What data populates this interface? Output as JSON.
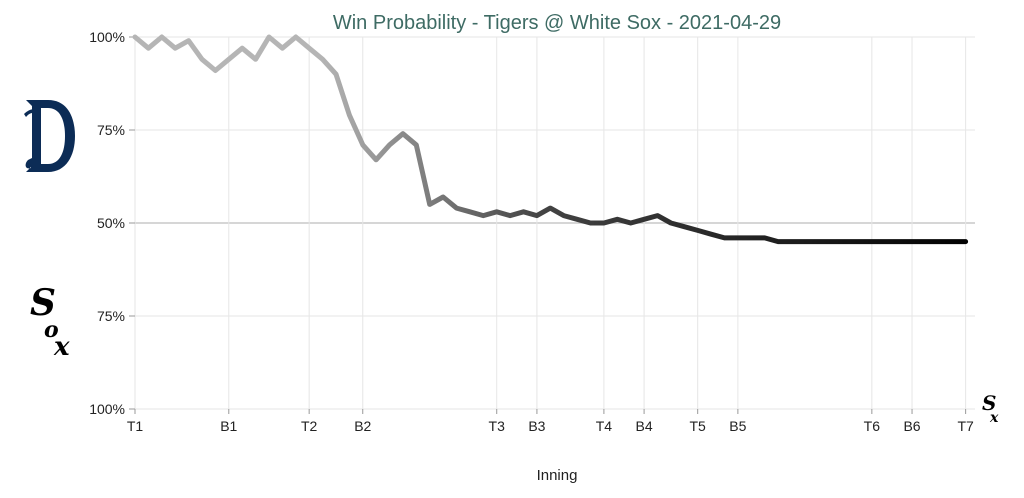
{
  "chart_data": {
    "type": "line",
    "title": "Win Probability - Tigers @ White Sox - 2021-04-29",
    "xlabel": "Inning",
    "ylabel": "",
    "teams": {
      "top": "Tigers",
      "bottom": "White Sox"
    },
    "y_ticks": [
      "100%",
      "75%",
      "50%",
      "75%",
      "100%"
    ],
    "ylim": [
      -50,
      50
    ],
    "x_ticks": [
      {
        "label": "T1",
        "x": 0
      },
      {
        "label": "B1",
        "x": 7
      },
      {
        "label": "T2",
        "x": 13
      },
      {
        "label": "B2",
        "x": 17
      },
      {
        "label": "T3",
        "x": 27
      },
      {
        "label": "B3",
        "x": 30
      },
      {
        "label": "T4",
        "x": 35
      },
      {
        "label": "B4",
        "x": 38
      },
      {
        "label": "T5",
        "x": 42
      },
      {
        "label": "B5",
        "x": 45
      },
      {
        "label": "T6",
        "x": 55
      },
      {
        "label": "B6",
        "x": 58
      },
      {
        "label": "T7",
        "x": 62
      }
    ],
    "xlim": [
      0,
      62.7
    ],
    "series": [
      {
        "x": [
          0,
          1,
          2,
          3,
          4,
          5,
          6,
          7,
          8,
          9,
          10,
          11,
          12,
          13,
          14,
          15,
          16,
          17,
          18,
          19,
          20,
          21,
          22,
          23,
          24,
          25,
          26,
          27,
          28,
          29,
          30,
          31,
          32,
          33,
          34,
          35,
          36,
          37,
          38,
          39,
          40,
          41,
          42,
          43,
          44,
          45,
          46,
          47,
          48,
          49,
          50,
          51,
          52,
          53,
          54,
          55,
          56,
          57,
          58,
          59,
          60,
          61,
          62
        ],
        "values": [
          50,
          47,
          50,
          47,
          49,
          44,
          41,
          44,
          47,
          44,
          50,
          47,
          50,
          47,
          44,
          40,
          29,
          21,
          17,
          21,
          24,
          21,
          5,
          7,
          4,
          3,
          2,
          3,
          2,
          3,
          2,
          4,
          2,
          1,
          0,
          0,
          1,
          0,
          1,
          2,
          0,
          -1,
          -2,
          -3,
          -4,
          -4,
          -4,
          -4,
          -5,
          -5,
          -5,
          -5,
          -5,
          -5,
          -5,
          -5,
          -5,
          -5,
          -5,
          -5,
          -5,
          -5,
          -5
        ]
      }
    ],
    "colors": {
      "title": "#3e6b64",
      "line_start": "#b5b5b5",
      "line_end": "#000000",
      "grid": "#e6e6e6",
      "midline": "#c8c8c8",
      "tigers_logo": "#0c2c56",
      "white_sox_logo": "#000000"
    },
    "grid": true,
    "logos": {
      "top": "tigers-d-logo-icon",
      "bottom": "white-sox-logo-icon",
      "end": "white-sox-logo-icon"
    }
  }
}
